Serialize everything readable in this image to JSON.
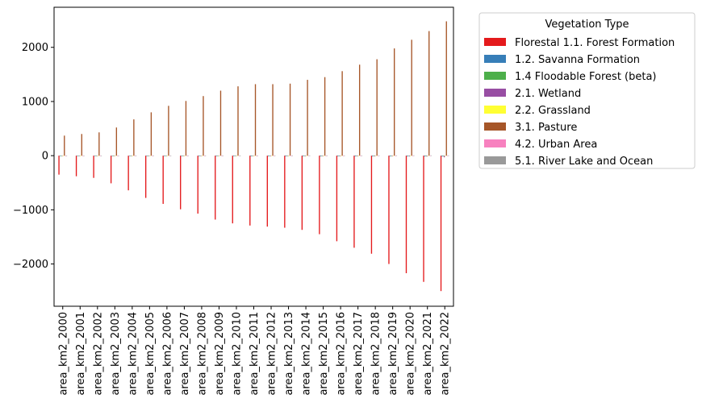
{
  "chart_data": {
    "type": "bar",
    "categories": [
      "area_km2_2000",
      "area_km2_2001",
      "area_km2_2002",
      "area_km2_2003",
      "area_km2_2004",
      "area_km2_2005",
      "area_km2_2006",
      "area_km2_2007",
      "area_km2_2008",
      "area_km2_2009",
      "area_km2_2010",
      "area_km2_2011",
      "area_km2_2012",
      "area_km2_2013",
      "area_km2_2014",
      "area_km2_2015",
      "area_km2_2016",
      "area_km2_2017",
      "area_km2_2018",
      "area_km2_2019",
      "area_km2_2020",
      "area_km2_2021",
      "area_km2_2022"
    ],
    "ylim": [
      -2780,
      2740
    ],
    "yticks": [
      -2000,
      -1000,
      0,
      1000,
      2000
    ],
    "ytick_labels": [
      "−2000",
      "−1000",
      "0",
      "1000",
      "2000"
    ],
    "grid": false,
    "legend": {
      "title": "Vegetation Type",
      "placement": "outside-right-top"
    },
    "series": [
      {
        "name": " Florestal 1.1. Forest Formation",
        "color": "#e41a1c",
        "values": [
          -350,
          -380,
          -410,
          -510,
          -640,
          -780,
          -890,
          -990,
          -1070,
          -1180,
          -1250,
          -1290,
          -1310,
          -1330,
          -1370,
          -1450,
          -1580,
          -1700,
          -1810,
          -2000,
          -2170,
          -2330,
          -2500
        ]
      },
      {
        "name": "1.2. Savanna Formation",
        "color": "#377eb8",
        "values": [
          -8,
          -8,
          -8,
          -9,
          -9,
          -10,
          -10,
          -10,
          -11,
          -11,
          -11,
          -12,
          -12,
          -12,
          -12,
          -13,
          -13,
          -13,
          -14,
          -14,
          -14,
          -15,
          -15
        ]
      },
      {
        "name": "1.4 Floodable Forest (beta)",
        "color": "#4daf4a",
        "values": [
          -5,
          -5,
          -5,
          -5,
          -6,
          -6,
          -6,
          -6,
          -7,
          -7,
          -7,
          -7,
          -8,
          -8,
          -8,
          -8,
          -8,
          -9,
          -9,
          -9,
          -9,
          -10,
          -10
        ]
      },
      {
        "name": "2.1. Wetland",
        "color": "#984ea3",
        "values": [
          -3,
          -3,
          -4,
          -4,
          -5,
          -5,
          -6,
          -6,
          -7,
          -8,
          -9,
          -9,
          -10,
          -10,
          -11,
          -11,
          -12,
          -12,
          -13,
          -13,
          -14,
          -15,
          -30
        ]
      },
      {
        "name": "2.2. Grassland",
        "color": "#ffff33",
        "values": [
          -2,
          -2,
          -2,
          -2,
          -3,
          -3,
          -3,
          -3,
          -3,
          -4,
          -4,
          -4,
          -4,
          -4,
          -4,
          -5,
          -5,
          -5,
          -5,
          -5,
          -5,
          -5,
          -5
        ]
      },
      {
        "name": "3.1. Pasture",
        "color": "#a65628",
        "values": [
          370,
          400,
          430,
          520,
          670,
          800,
          920,
          1010,
          1100,
          1200,
          1280,
          1320,
          1320,
          1330,
          1400,
          1450,
          1560,
          1680,
          1780,
          1980,
          2140,
          2300,
          2480
        ]
      },
      {
        "name": "4.2. Urban Area",
        "color": "#f781bf",
        "values": [
          1,
          1,
          1,
          1,
          1,
          1,
          1,
          1,
          1,
          1,
          1,
          1,
          1,
          1,
          1,
          1,
          1,
          1,
          1,
          1,
          1,
          1,
          1
        ]
      },
      {
        "name": "5.1. River Lake and Ocean",
        "color": "#999999",
        "values": [
          2,
          2,
          2,
          2,
          3,
          3,
          3,
          3,
          3,
          3,
          3,
          3,
          4,
          4,
          4,
          4,
          4,
          4,
          4,
          5,
          5,
          5,
          5
        ]
      }
    ]
  }
}
